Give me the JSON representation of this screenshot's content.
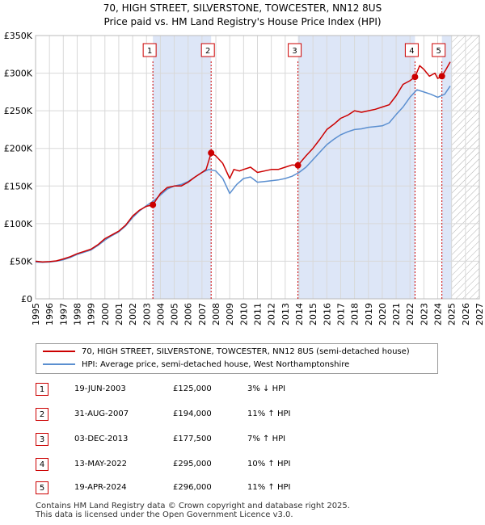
{
  "title_line1": "70, HIGH STREET, SILVERSTONE, TOWCESTER, NN12 8US",
  "title_line2": "Price paid vs. HM Land Registry's House Price Index (HPI)",
  "legend": {
    "property": "70, HIGH STREET, SILVERSTONE, TOWCESTER, NN12 8US (semi-detached house)",
    "hpi": "HPI: Average price, semi-detached house, West Northamptonshire"
  },
  "sales": [
    {
      "num": "1",
      "date": "19-JUN-2003",
      "price": "£125,000",
      "hpi": "3% ↓ HPI"
    },
    {
      "num": "2",
      "date": "31-AUG-2007",
      "price": "£194,000",
      "hpi": "11% ↑ HPI"
    },
    {
      "num": "3",
      "date": "03-DEC-2013",
      "price": "£177,500",
      "hpi": "7% ↑ HPI"
    },
    {
      "num": "4",
      "date": "13-MAY-2022",
      "price": "£295,000",
      "hpi": "10% ↑ HPI"
    },
    {
      "num": "5",
      "date": "19-APR-2024",
      "price": "£296,000",
      "hpi": "11% ↑ HPI"
    }
  ],
  "footer_line1": "Contains HM Land Registry data © Crown copyright and database right 2025.",
  "footer_line2": "This data is licensed under the Open Government Licence v3.0.",
  "colors": {
    "property": "#cc0000",
    "hpi": "#5b8fd0",
    "shade": "#dde6f7",
    "grid": "#d8d8d8"
  },
  "chart_data": {
    "type": "line",
    "title": "70, HIGH STREET, SILVERSTONE, TOWCESTER, NN12 8US — Price paid vs. HM Land Registry's House Price Index (HPI)",
    "xlabel": "",
    "ylabel": "",
    "xlim": [
      1995,
      2027
    ],
    "ylim": [
      0,
      350000
    ],
    "x_ticks": [
      1995,
      1996,
      1997,
      1998,
      1999,
      2000,
      2001,
      2002,
      2003,
      2004,
      2005,
      2006,
      2007,
      2008,
      2009,
      2010,
      2011,
      2012,
      2013,
      2014,
      2015,
      2016,
      2017,
      2018,
      2019,
      2020,
      2021,
      2022,
      2023,
      2024,
      2025,
      2026,
      2027
    ],
    "y_ticks": [
      0,
      50000,
      100000,
      150000,
      200000,
      250000,
      300000,
      350000
    ],
    "y_tick_labels": [
      "£0",
      "£50K",
      "£100K",
      "£150K",
      "£200K",
      "£250K",
      "£300K",
      "£350K"
    ],
    "shaded_ranges": [
      [
        2003.46,
        2007.66
      ],
      [
        2013.92,
        2022.36
      ],
      [
        2024.3,
        2025.0
      ]
    ],
    "forecast_hatch_from": 2025.0,
    "series": [
      {
        "name": "70, HIGH STREET, SILVERSTONE, TOWCESTER, NN12 8US (semi-detached house)",
        "x": [
          1995,
          1995.5,
          1996,
          1996.5,
          1997,
          1997.5,
          1998,
          1998.5,
          1999,
          1999.5,
          2000,
          2000.5,
          2001,
          2001.5,
          2002,
          2002.5,
          2003,
          2003.46,
          2004,
          2004.5,
          2005,
          2005.5,
          2006,
          2006.5,
          2007,
          2007.3,
          2007.66,
          2008,
          2008.5,
          2009,
          2009.3,
          2009.7,
          2010,
          2010.5,
          2011,
          2011.5,
          2012,
          2012.5,
          2013,
          2013.5,
          2013.92,
          2014.5,
          2015,
          2015.5,
          2016,
          2016.5,
          2017,
          2017.5,
          2018,
          2018.5,
          2019,
          2019.5,
          2020,
          2020.5,
          2021,
          2021.5,
          2022,
          2022.36,
          2022.7,
          2023,
          2023.4,
          2023.8,
          2024.0,
          2024.3,
          2024.6,
          2024.9
        ],
        "values": [
          50000,
          49000,
          49500,
          50500,
          53000,
          56000,
          60000,
          63000,
          66000,
          72000,
          80000,
          85000,
          90000,
          98000,
          110000,
          118000,
          123000,
          125000,
          140000,
          148000,
          150000,
          150000,
          155000,
          162000,
          168000,
          172000,
          194000,
          190000,
          180000,
          160000,
          172000,
          170000,
          172000,
          175000,
          168000,
          170000,
          172000,
          172000,
          175000,
          178000,
          177500,
          190000,
          200000,
          212000,
          225000,
          232000,
          240000,
          244000,
          250000,
          248000,
          250000,
          252000,
          255000,
          258000,
          270000,
          285000,
          290000,
          295000,
          310000,
          305000,
          296000,
          300000,
          293000,
          296000,
          305000,
          315000
        ]
      },
      {
        "name": "HPI: Average price, semi-detached house, West Northamptonshire",
        "x": [
          1995,
          1995.5,
          1996,
          1996.5,
          1997,
          1997.5,
          1998,
          1998.5,
          1999,
          1999.5,
          2000,
          2000.5,
          2001,
          2001.5,
          2002,
          2002.5,
          2003,
          2003.5,
          2004,
          2004.5,
          2005,
          2005.5,
          2006,
          2006.5,
          2007,
          2007.5,
          2008,
          2008.5,
          2009,
          2009.5,
          2010,
          2010.5,
          2011,
          2011.5,
          2012,
          2012.5,
          2013,
          2013.5,
          2014,
          2014.5,
          2015,
          2015.5,
          2016,
          2016.5,
          2017,
          2017.5,
          2018,
          2018.5,
          2019,
          2019.5,
          2020,
          2020.5,
          2021,
          2021.5,
          2022,
          2022.5,
          2023,
          2023.5,
          2024,
          2024.5,
          2024.9
        ],
        "values": [
          49000,
          48500,
          49000,
          50000,
          52000,
          55000,
          59000,
          62000,
          65000,
          71000,
          78000,
          84000,
          89000,
          97000,
          108000,
          117000,
          124000,
          130000,
          138000,
          146000,
          150000,
          152000,
          156000,
          162000,
          168000,
          172000,
          170000,
          160000,
          140000,
          152000,
          160000,
          162000,
          155000,
          156000,
          157000,
          158000,
          160000,
          163000,
          168000,
          175000,
          185000,
          195000,
          205000,
          212000,
          218000,
          222000,
          225000,
          226000,
          228000,
          229000,
          230000,
          234000,
          245000,
          255000,
          268000,
          278000,
          275000,
          272000,
          268000,
          272000,
          283000
        ]
      }
    ],
    "markers": [
      {
        "label": "1",
        "x": 2003.46,
        "value": 125000
      },
      {
        "label": "2",
        "x": 2007.66,
        "value": 194000
      },
      {
        "label": "3",
        "x": 2013.92,
        "value": 177500
      },
      {
        "label": "4",
        "x": 2022.36,
        "value": 295000
      },
      {
        "label": "5",
        "x": 2024.3,
        "value": 296000
      }
    ]
  }
}
